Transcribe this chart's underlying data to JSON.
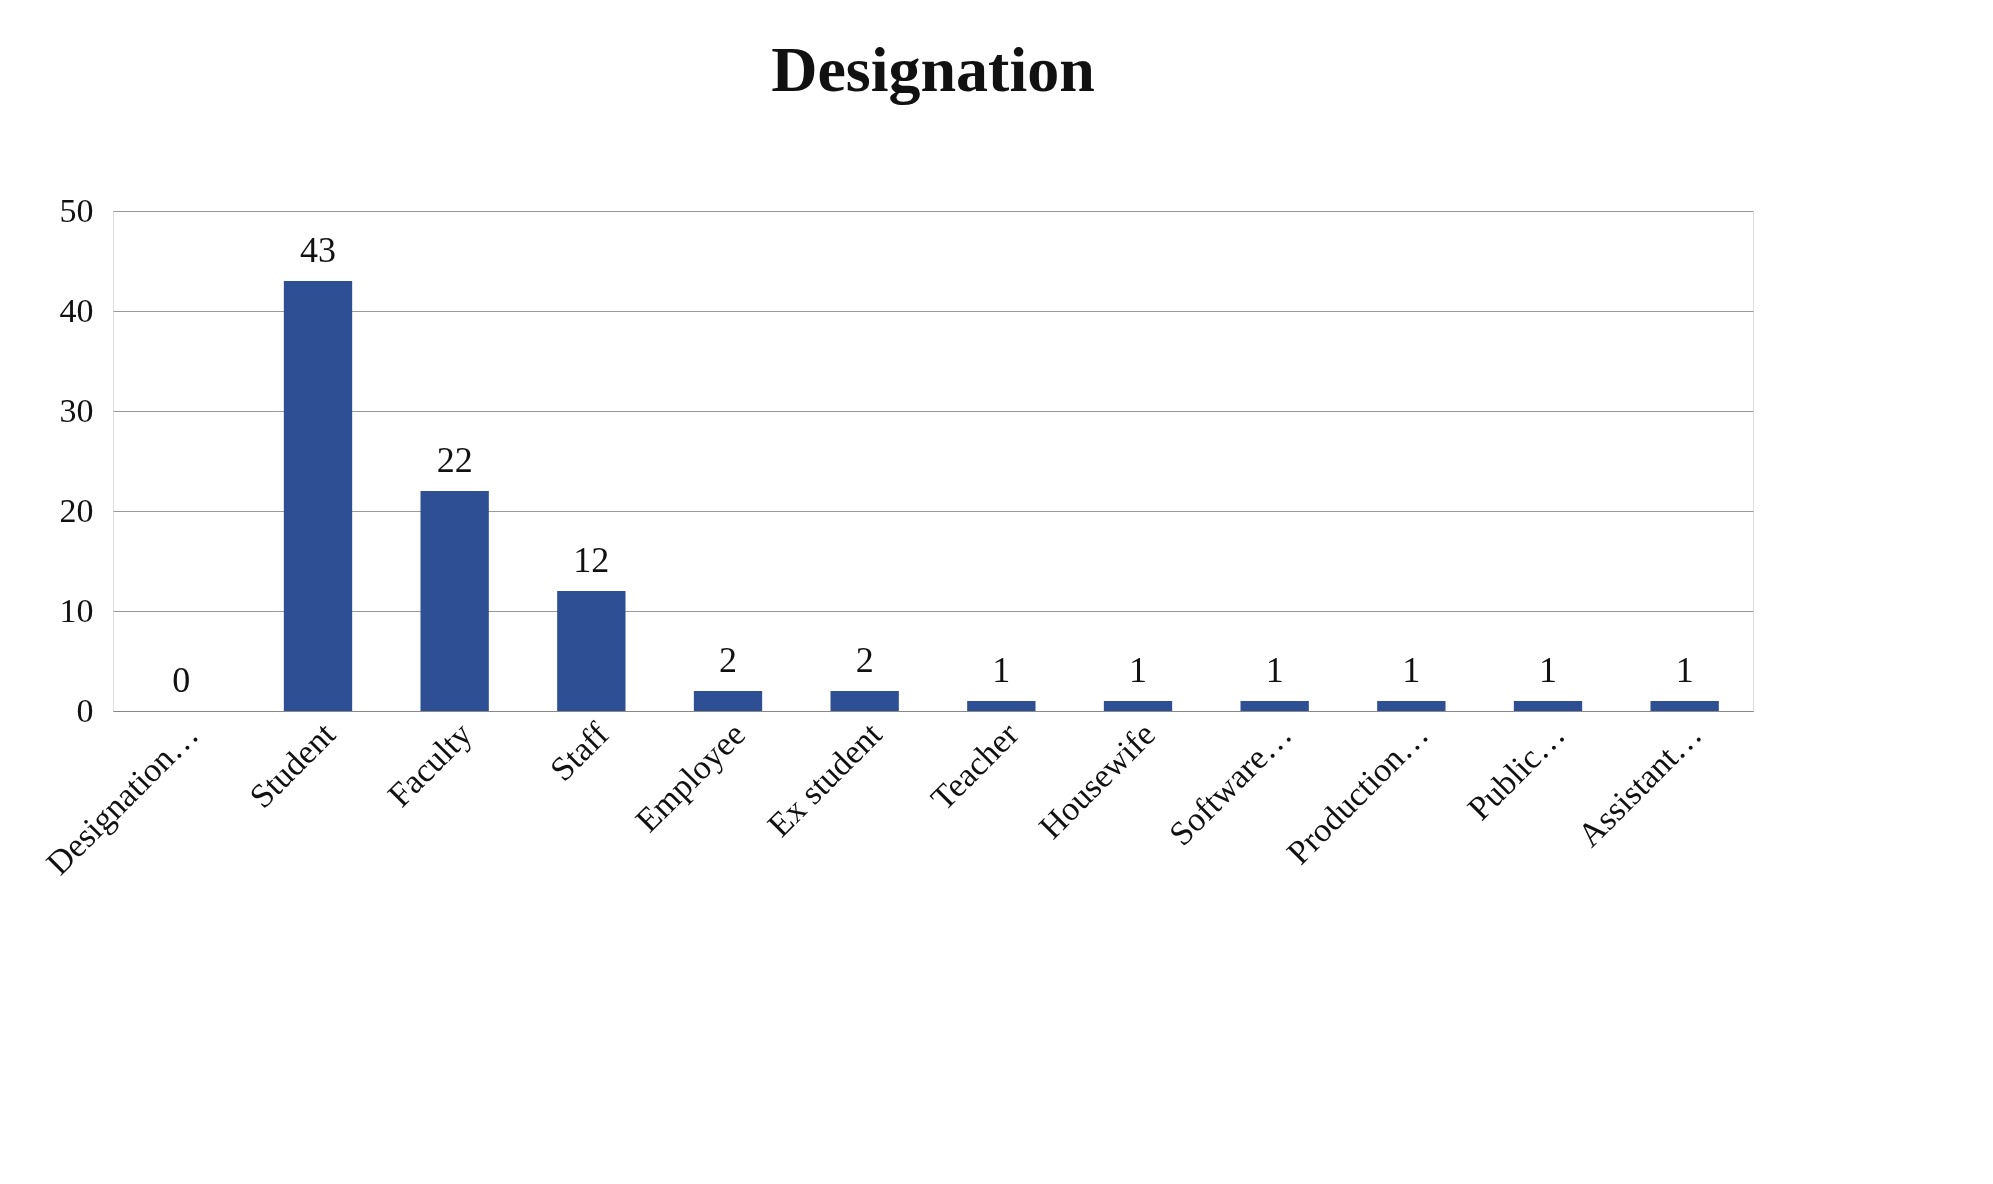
{
  "chart_data": {
    "type": "bar",
    "title": "Designation",
    "categories": [
      "Designation…",
      "Student",
      "Faculty",
      "Staff",
      "Employee",
      "Ex student",
      "Teacher",
      "Housewife",
      "Software…",
      "Production…",
      "Public…",
      "Assistant…"
    ],
    "values": [
      0,
      43,
      22,
      12,
      2,
      2,
      1,
      1,
      1,
      1,
      1,
      1
    ],
    "color": "#2f4f94",
    "ylim": [
      0,
      50
    ],
    "yticks": [
      0,
      10,
      20,
      30,
      40,
      50
    ],
    "grid": "y",
    "data_labels": true
  }
}
